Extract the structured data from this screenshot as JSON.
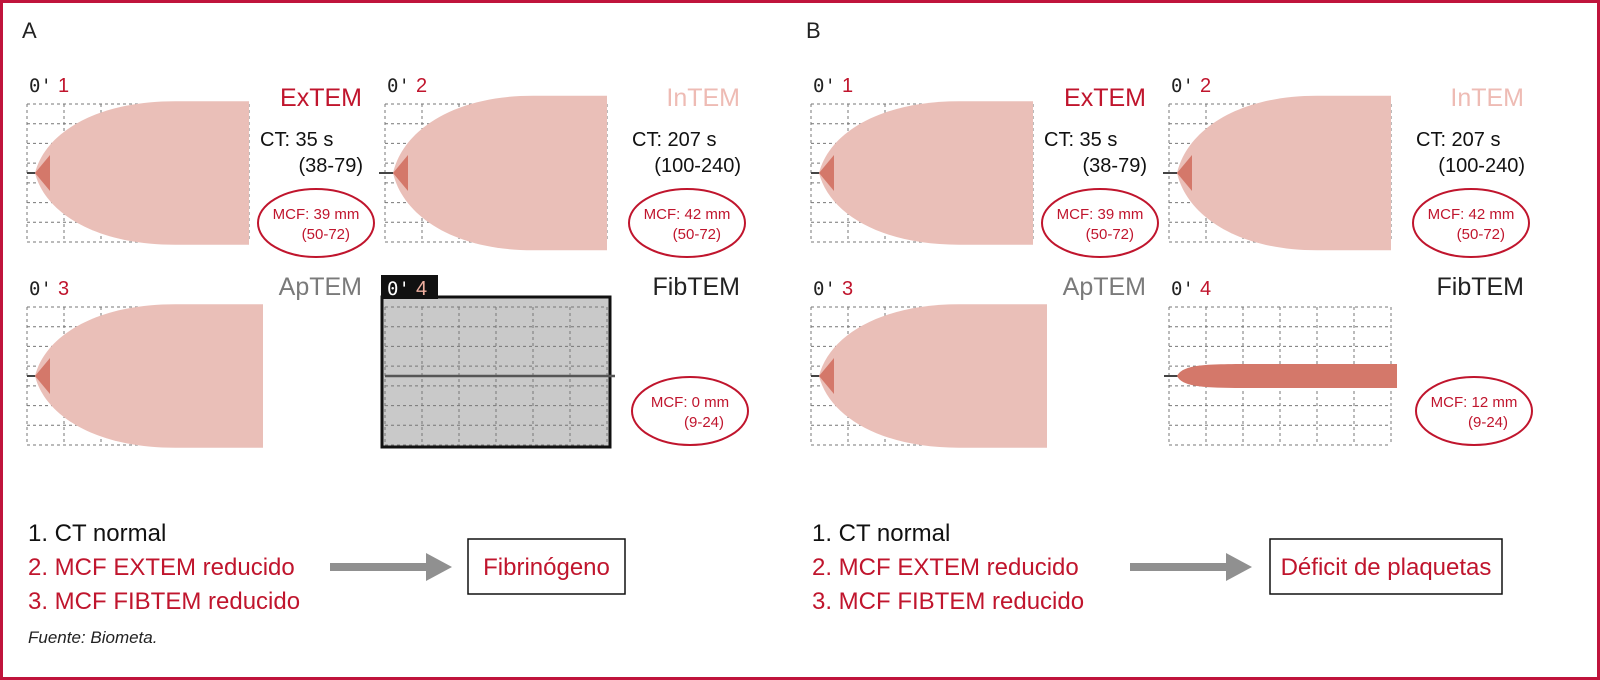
{
  "colors": {
    "frame": "#c0143c",
    "red": "#c0152d",
    "trace_fill": "#eabfb8",
    "trace_dark": "#d4786a",
    "intem_label": "#eebbb4",
    "aptem_label": "#7a7a7a",
    "fibtem_label": "#222222",
    "arrow": "#909090",
    "panel4_bg": "#c9c9c9"
  },
  "panels": [
    {
      "id": "A",
      "label": "A",
      "tests": [
        {
          "time_prefix": "0'",
          "index": "1",
          "name": "ExTEM",
          "name_color": "red",
          "ct_label": "CT: 35 s",
          "ct_range": "(38-79)",
          "mcf_label": "MCF: 39 mm",
          "mcf_range": "(50-72)",
          "trace": "normal",
          "amplitude_mm": 39
        },
        {
          "time_prefix": "0'",
          "index": "2",
          "name": "InTEM",
          "name_color": "intem",
          "ct_label": "CT: 207 s",
          "ct_range": "(100-240)",
          "mcf_label": "MCF: 42 mm",
          "mcf_range": "(50-72)",
          "trace": "normal",
          "amplitude_mm": 42
        },
        {
          "time_prefix": "0'",
          "index": "3",
          "name": "ApTEM",
          "name_color": "aptem",
          "ct_label": "",
          "ct_range": "",
          "mcf_label": "",
          "mcf_range": "",
          "trace": "normal",
          "amplitude_mm": 39
        },
        {
          "time_prefix": "0'",
          "index": "4",
          "name": "FibTEM",
          "name_color": "fibtem",
          "ct_label": "",
          "ct_range": "",
          "mcf_label": "MCF: 0 mm",
          "mcf_range": "(9-24)",
          "trace": "flat",
          "amplitude_mm": 0
        }
      ],
      "findings": [
        "1. CT normal",
        "2. MCF EXTEM reducido",
        "3. MCF FIBTEM reducido"
      ],
      "result": "Fibrinógeno"
    },
    {
      "id": "B",
      "label": "B",
      "tests": [
        {
          "time_prefix": "0'",
          "index": "1",
          "name": "ExTEM",
          "name_color": "red",
          "ct_label": "CT: 35 s",
          "ct_range": "(38-79)",
          "mcf_label": "MCF: 39 mm",
          "mcf_range": "(50-72)",
          "trace": "normal",
          "amplitude_mm": 39
        },
        {
          "time_prefix": "0'",
          "index": "2",
          "name": "InTEM",
          "name_color": "intem",
          "ct_label": "CT: 207 s",
          "ct_range": "(100-240)",
          "mcf_label": "MCF: 42 mm",
          "mcf_range": "(50-72)",
          "trace": "normal",
          "amplitude_mm": 42
        },
        {
          "time_prefix": "0'",
          "index": "3",
          "name": "ApTEM",
          "name_color": "aptem",
          "ct_label": "",
          "ct_range": "",
          "mcf_label": "",
          "mcf_range": "",
          "trace": "normal",
          "amplitude_mm": 39
        },
        {
          "time_prefix": "0'",
          "index": "4",
          "name": "FibTEM",
          "name_color": "fibtem",
          "ct_label": "",
          "ct_range": "",
          "mcf_label": "MCF: 12 mm",
          "mcf_range": "(9-24)",
          "trace": "thin",
          "amplitude_mm": 12
        }
      ],
      "findings": [
        "1. CT normal",
        "2. MCF EXTEM reducido",
        "3. MCF FIBTEM reducido"
      ],
      "result": "Déficit de plaquetas"
    }
  ],
  "source": "Fuente: Biometa."
}
